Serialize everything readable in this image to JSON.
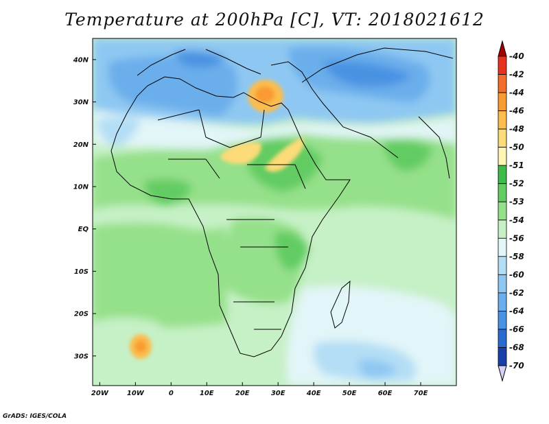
{
  "title": "Temperature at 200hPa [C], VT: 2018021612",
  "footer": "GrADS: IGES/COLA",
  "map": {
    "region": "Africa",
    "lat_labels": [
      "40N",
      "30N",
      "20N",
      "10N",
      "EQ",
      "10S",
      "20S",
      "30S"
    ],
    "lon_labels": [
      "20W",
      "10W",
      "0",
      "10E",
      "20E",
      "30E",
      "40E",
      "50E",
      "60E",
      "70E"
    ],
    "lat_values": [
      40,
      30,
      20,
      10,
      0,
      -10,
      -20,
      -30
    ],
    "lon_values": [
      -20,
      -10,
      0,
      10,
      20,
      30,
      40,
      50,
      60,
      70
    ],
    "lat_range": [
      -37,
      45
    ],
    "lon_range": [
      -22,
      80
    ]
  },
  "colorbar": {
    "levels": [
      "-40",
      "-42",
      "-44",
      "-46",
      "-48",
      "-50",
      "-51",
      "-52",
      "-53",
      "-54",
      "-56",
      "-58",
      "-60",
      "-62",
      "-64",
      "-66",
      "-68",
      "-70"
    ],
    "colors": [
      "#a50000",
      "#e8321e",
      "#f46d2a",
      "#f99b32",
      "#fbbd4e",
      "#fcdb78",
      "#fff5b4",
      "#3dbb4b",
      "#62cc62",
      "#95e08a",
      "#c6f0c6",
      "#e2f5f8",
      "#b4def5",
      "#8ec8f2",
      "#6aaeeb",
      "#4a92e2",
      "#2b6ad0",
      "#1741a8",
      "#0a1f80",
      "#06105a",
      "#d6d2f8"
    ]
  }
}
